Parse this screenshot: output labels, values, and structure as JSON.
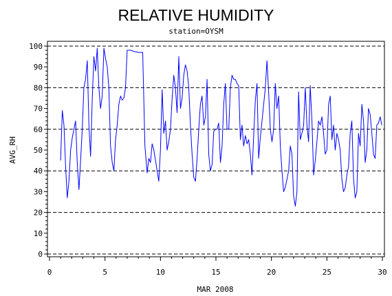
{
  "chart_data": {
    "type": "line",
    "title": "RELATIVE HUMIDITY",
    "subtitle": "station=OYSM",
    "xlabel": "MAR 2008",
    "ylabel": "AVG_RH",
    "xlim": [
      0,
      30
    ],
    "ylim": [
      0,
      100
    ],
    "xticks": [
      0,
      5,
      10,
      15,
      20,
      25,
      30
    ],
    "yticks": [
      0,
      10,
      20,
      30,
      40,
      50,
      60,
      70,
      80,
      90,
      100
    ],
    "reference_lines": [
      0,
      20,
      40,
      60,
      80,
      100
    ],
    "grid": false,
    "series_color": "#0000ff",
    "series": [
      {
        "x": [
          1.0,
          1.15,
          1.3,
          1.45,
          1.6,
          1.75,
          1.9,
          2.05,
          2.2,
          2.35,
          2.5,
          2.65,
          2.8,
          2.95,
          3.1,
          3.25,
          3.4,
          3.55,
          3.7,
          3.85,
          4.0,
          4.15,
          4.3,
          4.45,
          4.6,
          4.75,
          4.9,
          5.05,
          5.2,
          5.35,
          5.5,
          5.65,
          5.8,
          5.95,
          6.1,
          6.25,
          6.4,
          6.55,
          6.7,
          6.85,
          7.0,
          7.3,
          7.6,
          8.0,
          8.4,
          8.6,
          8.8,
          8.95,
          9.1,
          9.25,
          9.4,
          9.55,
          9.7,
          9.85,
          10.0,
          10.15,
          10.3,
          10.45,
          10.6,
          10.75,
          10.9,
          11.05,
          11.2,
          11.35,
          11.5,
          11.65,
          11.8,
          11.95,
          12.1,
          12.25,
          12.4,
          12.55,
          12.7,
          12.85,
          13.0,
          13.15,
          13.3,
          13.45,
          13.6,
          13.75,
          13.9,
          14.05,
          14.2,
          14.35,
          14.5,
          14.65,
          14.8,
          14.95,
          15.1,
          15.25,
          15.4,
          15.55,
          15.7,
          15.85,
          16.0,
          16.15,
          16.3,
          16.45,
          16.6,
          16.75,
          16.9,
          17.05,
          17.2,
          17.35,
          17.5,
          17.65,
          17.8,
          17.95,
          18.1,
          18.25,
          18.4,
          18.55,
          18.7,
          18.85,
          19.0,
          19.15,
          19.3,
          19.45,
          19.6,
          19.75,
          19.9,
          20.05,
          20.2,
          20.35,
          20.5,
          20.65,
          20.8,
          20.95,
          21.1,
          21.25,
          21.4,
          21.55,
          21.7,
          21.85,
          22.0,
          22.15,
          22.3,
          22.45,
          22.6,
          22.75,
          22.9,
          23.05,
          23.2,
          23.35,
          23.5,
          23.65,
          23.8,
          23.95,
          24.1,
          24.25,
          24.4,
          24.55,
          24.7,
          24.85,
          25.0,
          25.15,
          25.3,
          25.45,
          25.6,
          25.75,
          25.9,
          26.05,
          26.2,
          26.35,
          26.5,
          26.65,
          26.8,
          26.95,
          27.1,
          27.25,
          27.4,
          27.55,
          27.7,
          27.85,
          28.0,
          28.15,
          28.3,
          28.45,
          28.6,
          28.75,
          28.9,
          29.05,
          29.2,
          29.35,
          29.5,
          29.65,
          29.8,
          29.95
        ],
        "y": [
          45,
          69,
          62,
          42,
          27,
          35,
          50,
          56,
          60,
          64,
          44,
          31,
          45,
          60,
          80,
          84,
          93,
          62,
          47,
          74,
          95,
          88,
          99,
          80,
          70,
          76,
          99,
          94,
          90,
          80,
          52,
          44,
          40,
          55,
          62,
          72,
          76,
          74,
          75,
          80,
          98,
          98,
          97.5,
          97,
          97,
          52,
          39,
          46,
          44,
          53,
          50,
          45,
          40,
          35,
          50,
          79,
          58,
          64,
          50,
          54,
          60,
          75,
          86,
          80,
          68,
          95,
          70,
          75,
          86,
          91,
          88,
          80,
          62,
          48,
          37,
          35,
          46,
          60,
          72,
          76,
          62,
          66,
          84,
          48,
          40,
          43,
          59,
          60,
          60,
          63,
          44,
          52,
          72,
          82,
          60,
          60,
          80,
          86,
          84,
          84,
          82,
          81,
          55,
          62,
          52,
          57,
          53,
          55,
          48,
          38,
          57,
          74,
          82,
          46,
          56,
          64,
          72,
          80,
          93,
          78,
          60,
          54,
          60,
          82,
          70,
          76,
          52,
          40,
          30,
          32,
          36,
          40,
          52,
          48,
          28,
          23,
          30,
          78,
          55,
          58,
          62,
          80,
          62,
          54,
          81,
          64,
          38,
          45,
          54,
          64,
          62,
          66,
          58,
          48,
          50,
          72,
          76,
          55,
          62,
          50,
          58,
          55,
          50,
          36,
          30,
          32,
          38,
          42,
          58,
          64,
          36,
          27,
          30,
          58,
          52,
          72,
          64,
          44,
          50,
          70,
          67,
          58,
          48,
          46,
          62,
          63,
          66,
          62
        ]
      }
    ]
  }
}
